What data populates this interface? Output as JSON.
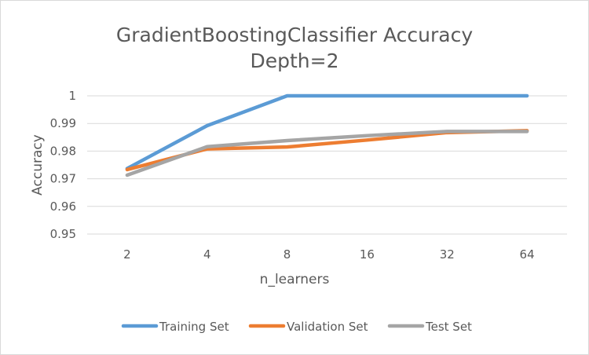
{
  "chart_data": {
    "type": "line",
    "title_lines": [
      "GradientBoostingClassifier  Accuracy",
      "Depth=2"
    ],
    "xlabel": "n_learners",
    "ylabel": "Accuracy",
    "categories": [
      "2",
      "4",
      "8",
      "16",
      "32",
      "64"
    ],
    "ylim": [
      0.95,
      1.0
    ],
    "yticks": [
      0.95,
      0.96,
      0.97,
      0.98,
      0.99,
      1
    ],
    "ytick_labels": [
      "0.95",
      "0.96",
      "0.97",
      "0.98",
      "0.99",
      "1"
    ],
    "grid": "horizontal",
    "legend_position": "bottom",
    "series": [
      {
        "name": "Training Set",
        "color": "#5b9bd5",
        "values": [
          0.9737,
          0.9892,
          1.0,
          1.0,
          1.0,
          1.0
        ]
      },
      {
        "name": "Validation Set",
        "color": "#ed7d31",
        "values": [
          0.9733,
          0.9808,
          0.9815,
          0.984,
          0.9867,
          0.9874
        ]
      },
      {
        "name": "Test Set",
        "color": "#a5a5a5",
        "values": [
          0.9713,
          0.9816,
          0.9838,
          0.9856,
          0.9871,
          0.9871
        ]
      }
    ]
  }
}
